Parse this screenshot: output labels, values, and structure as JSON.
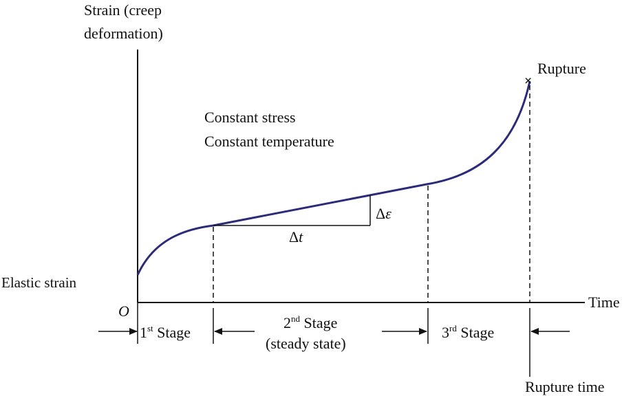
{
  "labels": {
    "y_axis_line1": "Strain (creep",
    "y_axis_line2": "deformation)",
    "x_axis": "Time",
    "origin": "O",
    "elastic_strain": "Elastic strain",
    "condition_stress": "Constant stress",
    "condition_temperature": "Constant temperature",
    "rupture": "Rupture",
    "rupture_marker": "×",
    "rupture_time": "Rupture time",
    "delta_t": "Δt",
    "delta_t_delta": "Δ",
    "delta_t_var": "t",
    "delta_eps_delta": "Δ",
    "delta_eps_var": "ε"
  },
  "stages": {
    "stage1_num": "1",
    "stage1_sup": "st",
    "stage1_word": " Stage",
    "stage2_num": "2",
    "stage2_sup": "nd",
    "stage2_word": " Stage",
    "stage2_sub": "(steady state)",
    "stage3_num": "3",
    "stage3_sup": "rd",
    "stage3_word": " Stage"
  },
  "colors": {
    "curve": "#2b2b7a",
    "axis": "#111111"
  }
}
